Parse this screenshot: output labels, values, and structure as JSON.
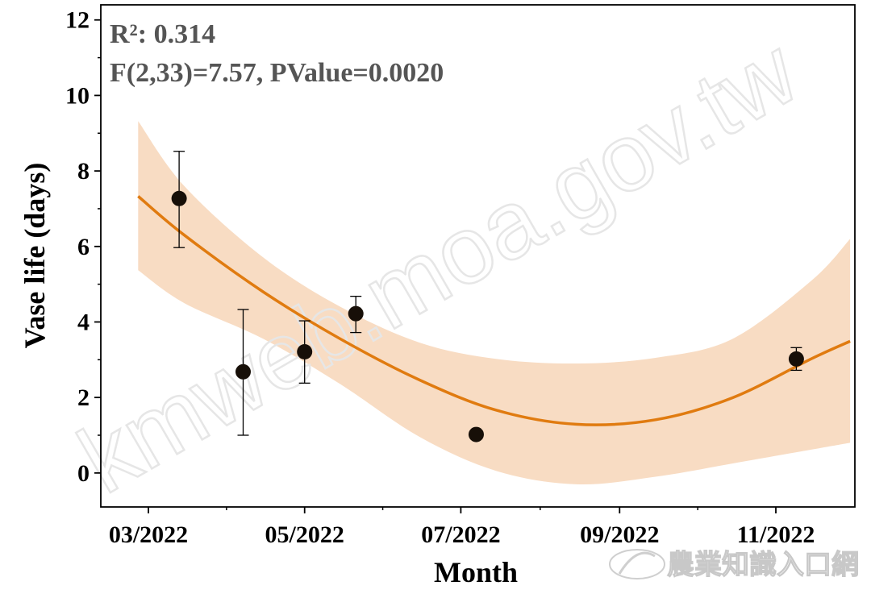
{
  "chart_data": {
    "type": "scatter",
    "xlabel": "Month",
    "ylabel": "Vase life (days)",
    "x_ticks": [
      "03/2022",
      "05/2022",
      "07/2022",
      "09/2022",
      "11/2022"
    ],
    "ylim": [
      -0.9,
      12.4
    ],
    "y_ticks": [
      0,
      2,
      4,
      6,
      8,
      10,
      12
    ],
    "annotations": [
      "R²: 0.314",
      "F(2,33)=7.57, PValue=0.0020"
    ],
    "points": [
      {
        "x": "2022-03-13",
        "y": 7.27,
        "err_low": 5.97,
        "err_high": 8.52
      },
      {
        "x": "2022-04-07",
        "y": 2.68,
        "err_low": 1.0,
        "err_high": 4.33
      },
      {
        "x": "2022-05-01",
        "y": 3.21,
        "err_low": 2.38,
        "err_high": 4.03
      },
      {
        "x": "2022-05-21",
        "y": 4.22,
        "err_low": 3.72,
        "err_high": 4.68
      },
      {
        "x": "2022-07-07",
        "y": 1.02
      },
      {
        "x": "2022-11-09",
        "y": 3.02,
        "err_low": 2.72,
        "err_high": 3.32
      }
    ],
    "fit": {
      "type": "quadratic",
      "x": [
        "2022-02-25",
        "2022-03-15",
        "2022-04-15",
        "2022-05-15",
        "2022-06-15",
        "2022-07-15",
        "2022-08-15",
        "2022-09-15",
        "2022-10-15",
        "2022-11-15",
        "2022-11-30"
      ],
      "y": [
        7.33,
        6.3,
        4.79,
        3.55,
        2.46,
        1.66,
        1.29,
        1.41,
        1.99,
        3.03,
        3.49
      ]
    },
    "confidence_band": {
      "x": [
        "2022-02-25",
        "2022-03-15",
        "2022-04-15",
        "2022-05-15",
        "2022-06-15",
        "2022-07-15",
        "2022-08-15",
        "2022-09-15",
        "2022-10-15",
        "2022-11-15",
        "2022-11-30"
      ],
      "upper": [
        9.32,
        7.6,
        5.7,
        4.4,
        3.45,
        3.02,
        2.9,
        3.05,
        3.55,
        5.1,
        6.2
      ],
      "lower": [
        5.37,
        4.5,
        3.55,
        2.35,
        0.95,
        0.05,
        -0.3,
        -0.1,
        0.25,
        0.62,
        0.8
      ]
    },
    "colors": {
      "fit_line": "#e07b10",
      "band": "#f8dcc3",
      "points": "#170f08",
      "axis": "#000000",
      "annotation_text": "#555555"
    },
    "grid": false,
    "legend": "none"
  },
  "watermark": "kmweb.moa.gov.tw",
  "logo": {
    "name": "農業知識入口網",
    "icon": "moa-swirl-logo-icon"
  }
}
